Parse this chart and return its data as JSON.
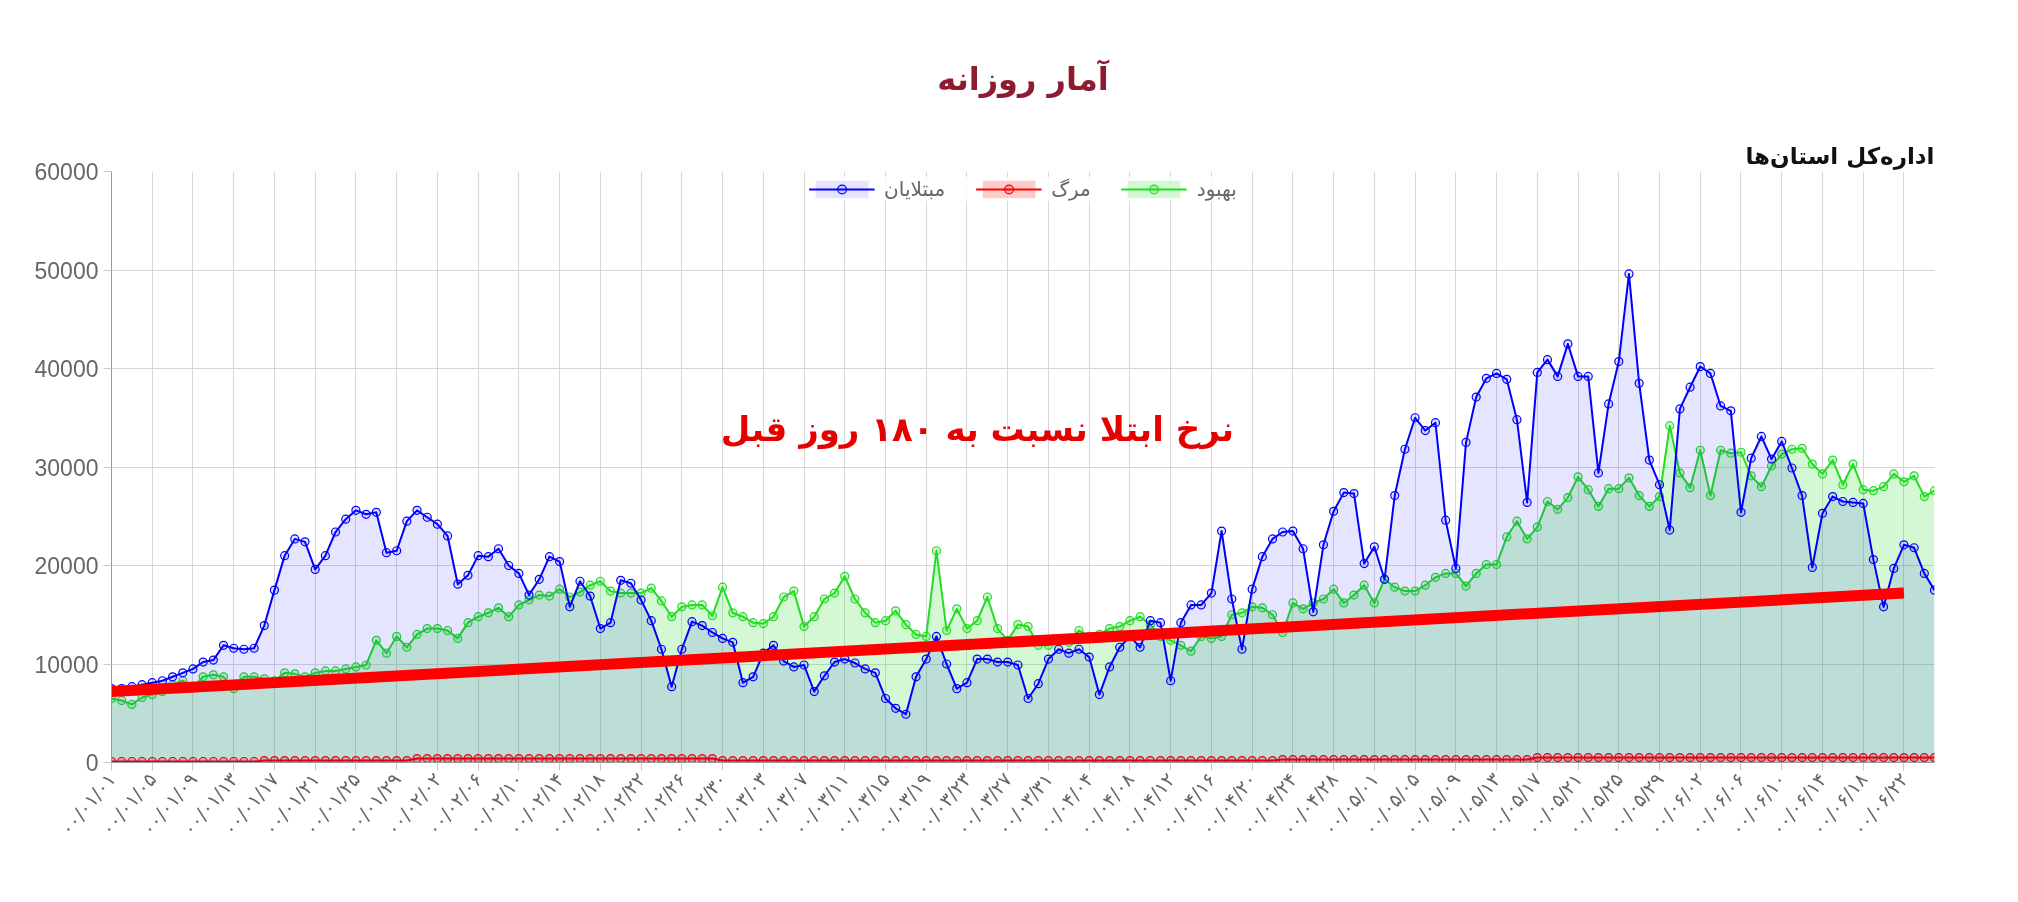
{
  "chart_data": {
    "type": "area",
    "title": "آمار روزانه",
    "annotations": [
      "نرخ ابتلا نسبت به ۱۸۰ روز قبل",
      "اداره‌کل استان‌ها"
    ],
    "categories": [
      "۰۰/۰۱/۰۱",
      null,
      null,
      null,
      "۰۰/۰۱/۰۵",
      null,
      null,
      null,
      "۰۰/۰۱/۰۹",
      null,
      null,
      null,
      "۰۰/۰۱/۱۳",
      null,
      null,
      null,
      "۰۰/۰۱/۱۷",
      null,
      null,
      null,
      "۰۰/۰۱/۲۱",
      null,
      null,
      null,
      "۰۰/۰۱/۲۵",
      null,
      null,
      null,
      "۰۰/۰۱/۲۹",
      null,
      null,
      null,
      "۰۰/۰۲/۰۲",
      null,
      null,
      null,
      "۰۰/۰۲/۰۶",
      null,
      null,
      null,
      "۰۰/۰۲/۱۰",
      null,
      null,
      null,
      "۰۰/۰۲/۱۴",
      null,
      null,
      null,
      "۰۰/۰۲/۱۸",
      null,
      null,
      null,
      "۰۰/۰۲/۲۲",
      null,
      null,
      null,
      "۰۰/۰۲/۲۶",
      null,
      null,
      null,
      "۰۰/۰۲/۳۰",
      null,
      null,
      null,
      "۰۰/۰۳/۰۳",
      null,
      null,
      null,
      "۰۰/۰۳/۰۷",
      null,
      null,
      null,
      "۰۰/۰۳/۱۱",
      null,
      null,
      null,
      "۰۰/۰۳/۱۵",
      null,
      null,
      null,
      "۰۰/۰۳/۱۹",
      null,
      null,
      null,
      "۰۰/۰۳/۲۳",
      null,
      null,
      null,
      "۰۰/۰۳/۲۷",
      null,
      null,
      null,
      "۰۰/۰۳/۳۱",
      null,
      null,
      null,
      "۰۰/۰۴/۰۴",
      null,
      null,
      null,
      "۰۰/۰۴/۰۸",
      null,
      null,
      null,
      "۰۰/۰۴/۱۲",
      null,
      null,
      null,
      "۰۰/۰۴/۱۶",
      null,
      null,
      null,
      "۰۰/۰۴/۲۰",
      null,
      null,
      null,
      "۰۰/۰۴/۲۴",
      null,
      null,
      null,
      "۰۰/۰۴/۲۸",
      null,
      null,
      null,
      "۰۰/۰۵/۰۱",
      null,
      null,
      null,
      "۰۰/۰۵/۰۵",
      null,
      null,
      null,
      "۰۰/۰۵/۰۹",
      null,
      null,
      null,
      "۰۰/۰۵/۱۳",
      null,
      null,
      null,
      "۰۰/۰۵/۱۷",
      null,
      null,
      null,
      "۰۰/۰۵/۲۱",
      null,
      null,
      null,
      "۰۰/۰۵/۲۵",
      null,
      null,
      null,
      "۰۰/۰۵/۲۹",
      null,
      null,
      null,
      "۰۰/۰۶/۰۲",
      null,
      null,
      null,
      "۰۰/۰۶/۰۶",
      null,
      null,
      null,
      "۰۰/۰۶/۱۰",
      null,
      null,
      null,
      "۰۰/۰۶/۱۴",
      null,
      null,
      null,
      "۰۰/۰۶/۱۸",
      null,
      null,
      null,
      "۰۰/۰۶/۲۲",
      null,
      null,
      null
    ],
    "ylim": [
      0,
      60000
    ],
    "yticks": [
      0,
      10000,
      20000,
      30000,
      40000,
      50000,
      60000
    ],
    "grid": true,
    "legend": "top",
    "marker": "circle",
    "series": [
      {
        "name": "مبتلایان",
        "color": "#0000ff",
        "values": [
          7500,
          7500,
          7700,
          7900,
          8100,
          8300,
          8700,
          9100,
          9500,
          10200,
          10400,
          11900,
          11600,
          11500,
          11600,
          13900,
          17500,
          21000,
          22700,
          22400,
          19600,
          21000,
          23400,
          24700,
          25600,
          25200,
          25400,
          21300,
          21500,
          24500,
          25600,
          24900,
          24200,
          23000,
          18100,
          19000,
          21000,
          20900,
          21700,
          20000,
          19200,
          17000,
          18600,
          20900,
          20400,
          15800,
          18400,
          16900,
          13600,
          14200,
          18500,
          18200,
          16500,
          14400,
          11500,
          7700,
          11500,
          14300,
          13900,
          13200,
          12600,
          12200,
          8100,
          8700,
          11100,
          11900,
          10300,
          9700,
          9900,
          7200,
          8800,
          10200,
          10500,
          10100,
          9500,
          9100,
          6500,
          5500,
          4900,
          8700,
          10500,
          12800,
          10000,
          7500,
          8100,
          10500,
          10500,
          10200,
          10200,
          9900,
          6500,
          8000,
          10500,
          11500,
          11100,
          11500,
          10700,
          6900,
          9700,
          11700,
          12800,
          11700,
          14400,
          14200,
          8300,
          14200,
          16000,
          16000,
          17200,
          23500,
          16600,
          11500,
          17600,
          20900,
          22700,
          23400,
          23500,
          21700,
          15300,
          22100,
          25500,
          27400,
          27300,
          20200,
          21900,
          18600,
          27100,
          31800,
          35000,
          33700,
          34500,
          24600,
          19700,
          32500,
          37100,
          39000,
          39500,
          38900,
          34800,
          26400,
          39600,
          40900,
          39200,
          42500,
          39200,
          39200,
          29400,
          36400,
          40700,
          49600,
          38500,
          30700,
          28200,
          23600,
          35900,
          38100,
          40200,
          39500,
          36200,
          35700,
          25400,
          30900,
          33100,
          30800,
          32600,
          29900,
          27100,
          19800,
          25300,
          27000,
          26500,
          26400,
          26300,
          20600,
          15800,
          19700,
          22100,
          21800,
          19200,
          17500
        ]
      },
      {
        "name": "مرگ",
        "color": "#ff0000",
        "values": [
          100,
          100,
          100,
          100,
          100,
          100,
          100,
          100,
          100,
          100,
          100,
          100,
          100,
          100,
          100,
          200,
          200,
          200,
          200,
          200,
          200,
          200,
          200,
          200,
          200,
          200,
          200,
          200,
          200,
          200,
          400,
          400,
          400,
          400,
          400,
          400,
          400,
          400,
          400,
          400,
          400,
          400,
          400,
          400,
          400,
          400,
          400,
          400,
          400,
          400,
          400,
          400,
          400,
          400,
          400,
          400,
          400,
          400,
          400,
          400,
          200,
          200,
          200,
          200,
          200,
          200,
          200,
          200,
          200,
          200,
          200,
          200,
          200,
          200,
          200,
          200,
          200,
          200,
          200,
          200,
          200,
          200,
          200,
          200,
          200,
          200,
          200,
          200,
          200,
          200,
          200,
          200,
          200,
          200,
          200,
          200,
          200,
          200,
          200,
          200,
          200,
          200,
          200,
          200,
          200,
          200,
          200,
          200,
          200,
          200,
          200,
          200,
          200,
          200,
          200,
          300,
          300,
          300,
          300,
          300,
          300,
          300,
          300,
          300,
          300,
          300,
          300,
          300,
          300,
          300,
          300,
          300,
          300,
          300,
          300,
          300,
          300,
          300,
          300,
          300,
          500,
          500,
          500,
          500,
          500,
          500,
          500,
          500,
          500,
          500,
          500,
          500,
          500,
          500,
          500,
          500,
          500,
          500,
          500,
          500,
          500,
          500,
          500,
          500,
          500,
          500,
          500,
          500,
          500,
          500,
          500,
          500,
          500,
          500,
          500,
          500,
          500,
          500,
          500,
          500
        ]
      },
      {
        "name": "بهبود",
        "color": "#22dd22",
        "values": [
          6500,
          6300,
          5900,
          6600,
          6900,
          7200,
          7900,
          8300,
          7600,
          8700,
          8900,
          8700,
          7500,
          8700,
          8700,
          8500,
          8300,
          9100,
          9000,
          8700,
          9100,
          9300,
          9300,
          9500,
          9700,
          9900,
          12400,
          11100,
          12800,
          11700,
          13000,
          13600,
          13600,
          13400,
          12600,
          14200,
          14800,
          15200,
          15700,
          14800,
          16000,
          16500,
          17000,
          16900,
          17600,
          16800,
          17300,
          18000,
          18400,
          17400,
          17200,
          17200,
          17200,
          17700,
          16400,
          14800,
          15800,
          16000,
          16000,
          14900,
          17800,
          15200,
          14800,
          14200,
          14100,
          14800,
          16800,
          17400,
          13800,
          14800,
          16600,
          17200,
          18900,
          16600,
          15200,
          14200,
          14400,
          15400,
          14000,
          13000,
          12800,
          21500,
          13400,
          15600,
          13600,
          14400,
          16800,
          13600,
          12400,
          14000,
          13800,
          11900,
          11900,
          12400,
          12200,
          13400,
          12800,
          13000,
          13600,
          13800,
          14400,
          14800,
          14000,
          12800,
          12400,
          11900,
          11300,
          12800,
          12600,
          12800,
          15000,
          15200,
          15800,
          15700,
          15000,
          13200,
          16200,
          15600,
          16200,
          16600,
          17600,
          16200,
          17000,
          18000,
          16200,
          18600,
          17800,
          17400,
          17400,
          18000,
          18800,
          19200,
          19200,
          17900,
          19200,
          20100,
          20100,
          22900,
          24500,
          22700,
          23900,
          26500,
          25700,
          26900,
          29000,
          27700,
          26000,
          27800,
          27800,
          28900,
          27100,
          26000,
          27000,
          34200,
          29400,
          27900,
          31700,
          27100,
          31700,
          31400,
          31500,
          29100,
          28000,
          30100,
          31300,
          31800,
          31900,
          30300,
          29300,
          30700,
          28200,
          30300,
          27700,
          27600,
          28000,
          29300,
          28500,
          29100,
          27000,
          27600
        ]
      },
      {
        "type": "line",
        "marker": "none",
        "color": "#ff0000",
        "x": [
          "۰۰/۰۱/۰۱",
          "۰۰/۰۶/۲۲"
        ],
        "values": [
          7200,
          17200
        ]
      }
    ]
  }
}
